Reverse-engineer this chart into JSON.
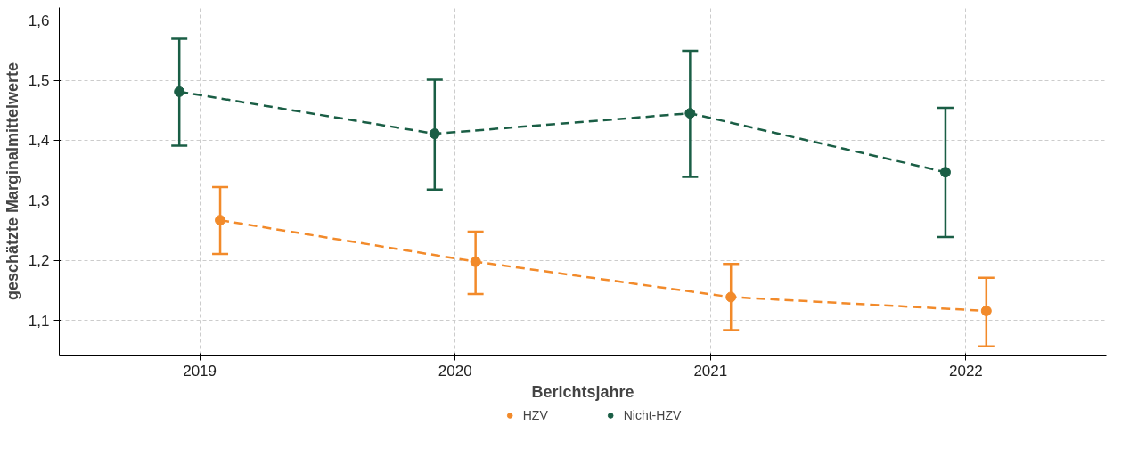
{
  "chart_data": {
    "type": "line",
    "xlabel": "Berichtsjahre",
    "ylabel": "geschätzte Marginalmittelwerte",
    "categories": [
      "2019",
      "2020",
      "2021",
      "2022"
    ],
    "series": [
      {
        "name": "HZV",
        "color": "#f28a2a",
        "values": [
          1.267,
          1.198,
          1.139,
          1.116
        ],
        "errors": [
          [
            1.211,
            1.322
          ],
          [
            1.144,
            1.248
          ],
          [
            1.084,
            1.194
          ],
          [
            1.057,
            1.171
          ]
        ]
      },
      {
        "name": "Nicht-HZV",
        "color": "#1a5e45",
        "values": [
          1.481,
          1.411,
          1.445,
          1.347
        ],
        "errors": [
          [
            1.391,
            1.569
          ],
          [
            1.318,
            1.501
          ],
          [
            1.339,
            1.549
          ],
          [
            1.239,
            1.454
          ]
        ]
      }
    ],
    "ylim": [
      1.0425,
      1.621
    ],
    "yticks": [
      {
        "value": 1.1,
        "label": "1,1"
      },
      {
        "value": 1.2,
        "label": "1,2"
      },
      {
        "value": 1.3,
        "label": "1,3"
      },
      {
        "value": 1.4,
        "label": "1,4"
      },
      {
        "value": 1.5,
        "label": "1,5"
      },
      {
        "value": 1.6,
        "label": "1,6"
      }
    ],
    "grid": true,
    "legend": "bottom",
    "marker": "circle",
    "line_style": "dashed"
  }
}
